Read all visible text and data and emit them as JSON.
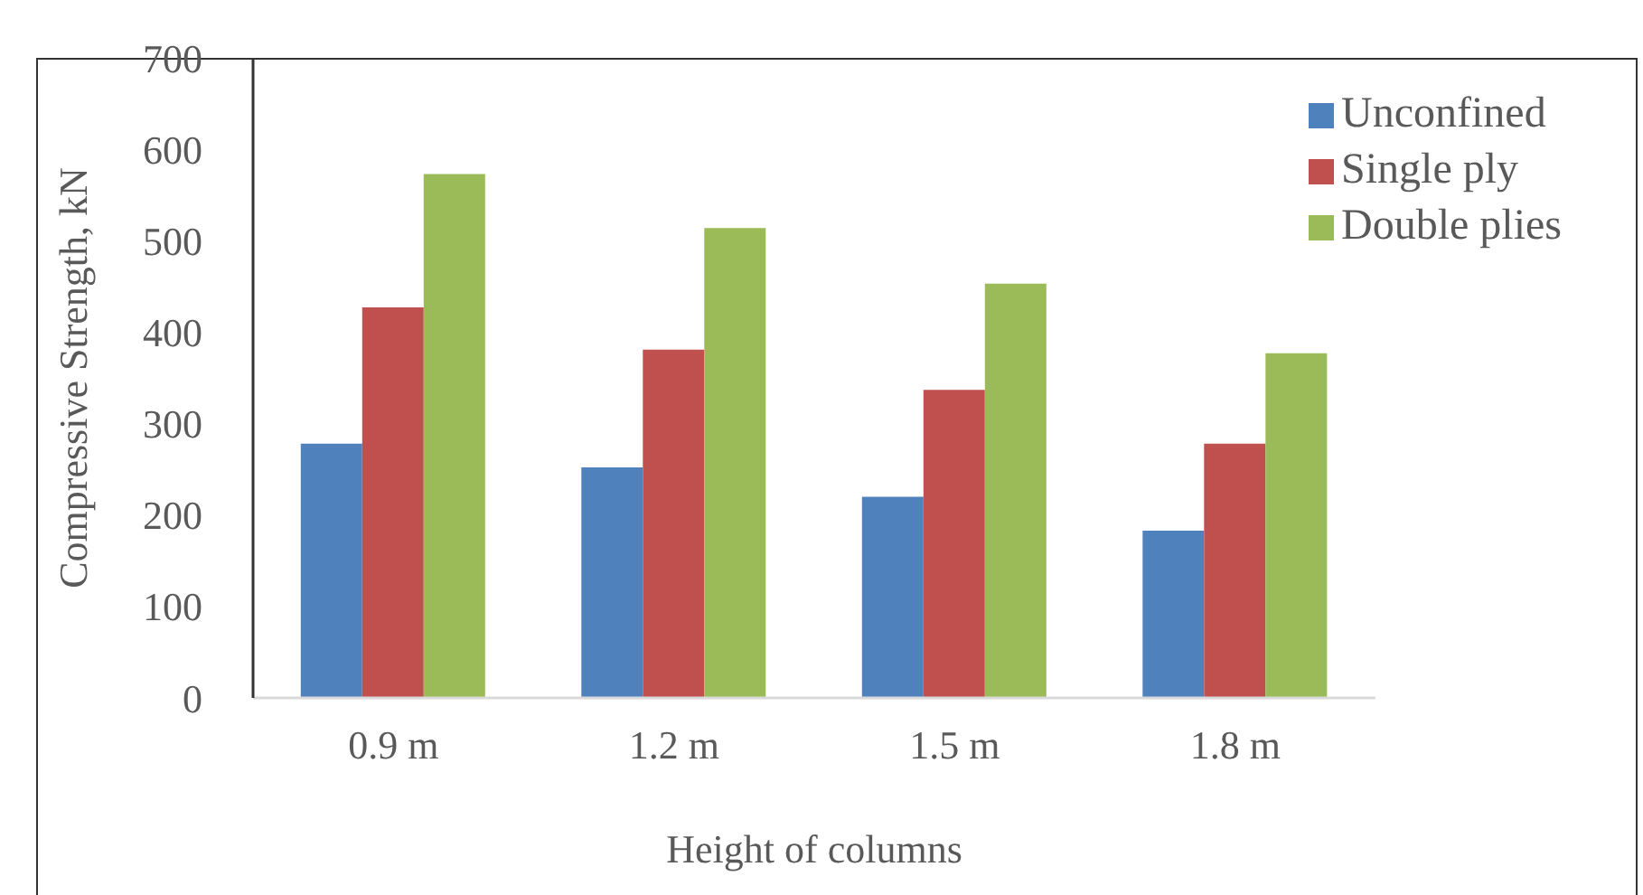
{
  "chart_data": {
    "type": "bar",
    "xlabel": "Height of columns",
    "ylabel": "Compressive Strength, kN",
    "categories": [
      "0.9 m",
      "1.2 m",
      "1.5 m",
      "1.8 m"
    ],
    "series": [
      {
        "name": "Unconfined",
        "color": "#4f81bd",
        "values": [
          278,
          252,
          220,
          183
        ]
      },
      {
        "name": "Single ply",
        "color": "#c0504d",
        "values": [
          427,
          381,
          337,
          278
        ]
      },
      {
        "name": "Double plies",
        "color": "#9bbb59",
        "values": [
          573,
          514,
          453,
          377
        ]
      }
    ],
    "ylim": [
      0,
      700
    ],
    "yticks": [
      0,
      100,
      200,
      300,
      400,
      500,
      600,
      700
    ],
    "grid": false,
    "legend": "top right"
  }
}
